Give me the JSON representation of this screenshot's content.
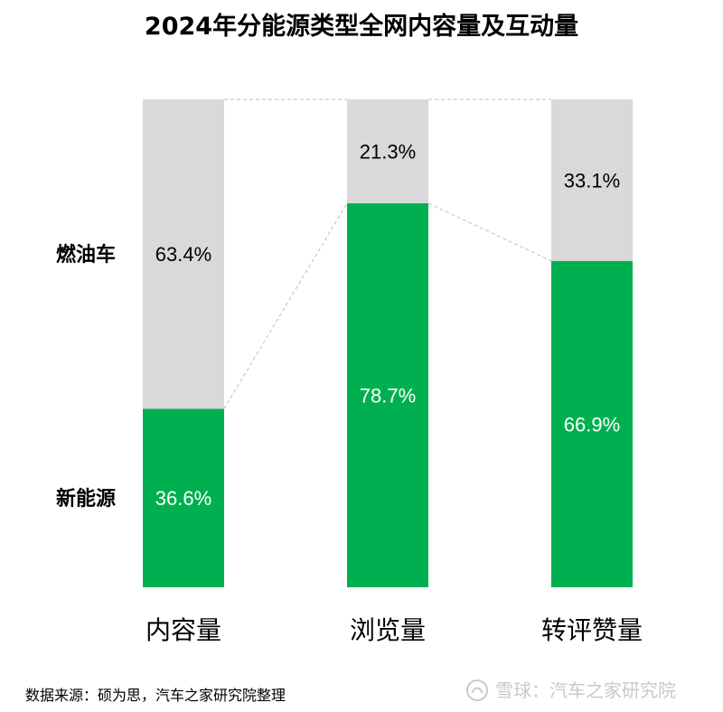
{
  "chart_data": {
    "type": "bar",
    "stacked": true,
    "percent": true,
    "title": "2024年分能源类型全网内容量及互动量",
    "categories": [
      "内容量",
      "浏览量",
      "转评赞量"
    ],
    "series": [
      {
        "name": "新能源",
        "values": [
          36.6,
          78.7,
          66.9
        ],
        "labels": [
          "36.6%",
          "78.7%",
          "66.9%"
        ],
        "color": "#00b050",
        "label_color": "#ffffff"
      },
      {
        "name": "燃油车",
        "values": [
          63.4,
          21.3,
          33.1
        ],
        "labels": [
          "63.4%",
          "21.3%",
          "33.1%"
        ],
        "color": "#d9d9d9",
        "label_color": "#000000"
      }
    ],
    "ylim": [
      0,
      100
    ],
    "connector_lines": true,
    "connector_color": "#bfbfbf"
  },
  "source": "数据来源：硕为思，汽车之家研究院整理",
  "watermark": {
    "icon": "snowball-logo-icon",
    "text": "雪球：汽车之家研究院"
  }
}
